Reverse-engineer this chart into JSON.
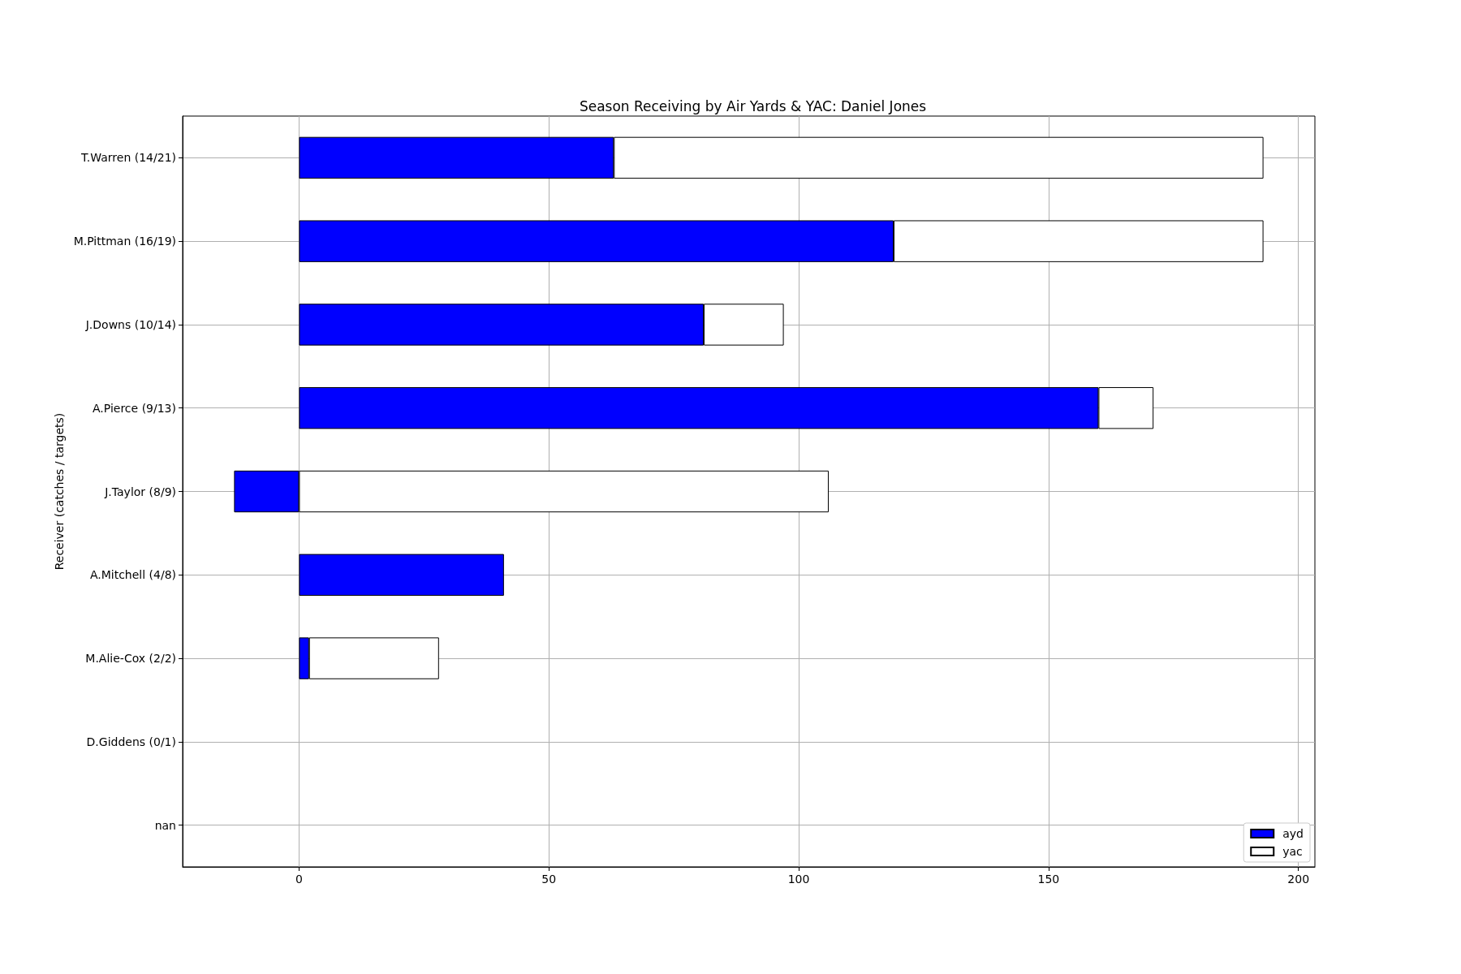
{
  "chart_data": {
    "type": "bar",
    "orientation": "horizontal",
    "stacked": true,
    "title": "Season Receiving by Air Yards & YAC: Daniel Jones",
    "ylabel": "Receiver (catches / targets)",
    "categories": [
      "T.Warren (14/21)",
      "M.Pittman (16/19)",
      "J.Downs (10/14)",
      "A.Pierce (9/13)",
      "J.Taylor (8/9)",
      "A.Mitchell (4/8)",
      "M.Alie-Cox (2/2)",
      "D.Giddens (0/1)",
      "nan"
    ],
    "series": [
      {
        "name": "ayd",
        "color": "#0000ff",
        "values": [
          63,
          119,
          81,
          160,
          -13,
          41,
          2,
          0,
          0
        ]
      },
      {
        "name": "yac",
        "color": "#ffffff",
        "values": [
          130,
          74,
          16,
          11,
          106,
          0,
          26,
          0,
          0
        ]
      }
    ],
    "xlim": [
      -23.3,
      203.3
    ],
    "xticks": [
      0,
      50,
      100,
      150,
      200
    ],
    "grid": true,
    "legend": "bottom right"
  }
}
